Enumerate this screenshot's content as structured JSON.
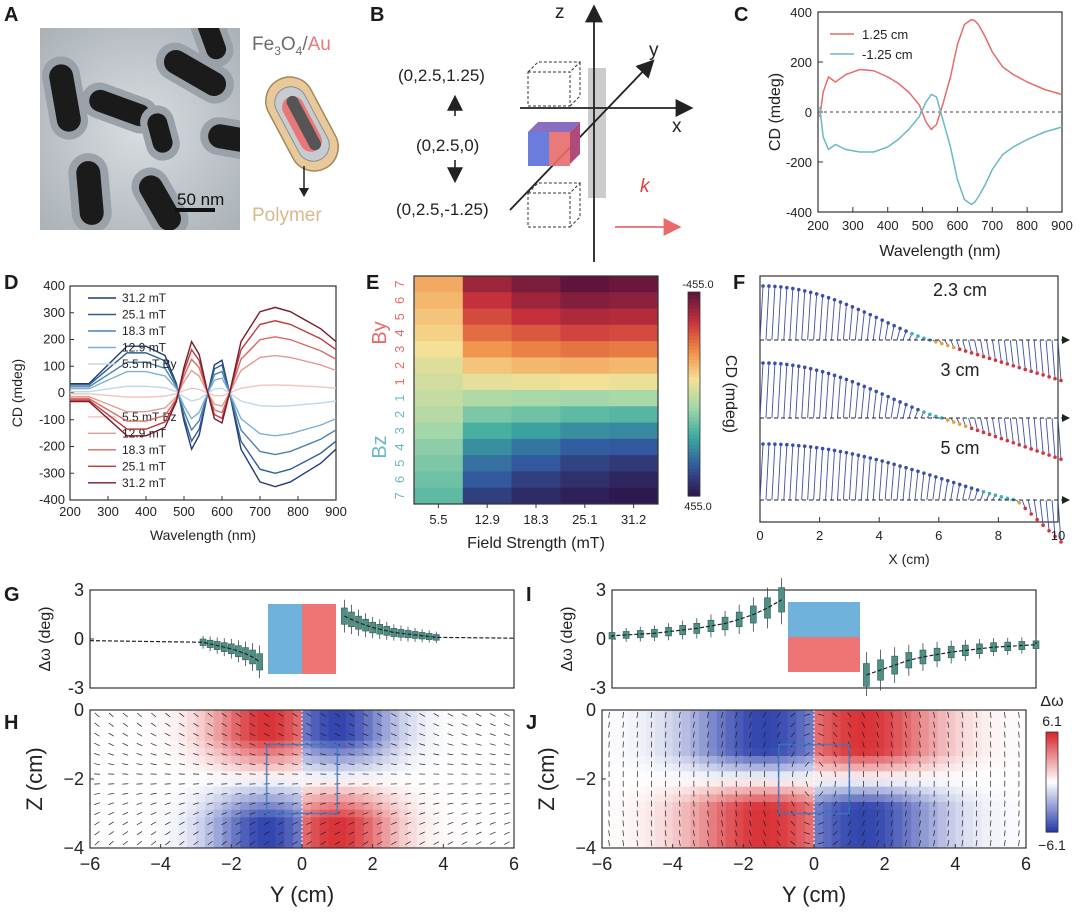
{
  "panels": {
    "A": "A",
    "B": "B",
    "C": "C",
    "D": "D",
    "E": "E",
    "F": "F",
    "G": "G",
    "H": "H",
    "I": "I",
    "J": "J"
  },
  "panel_a": {
    "scalebar": "50 nm",
    "formula_fe": "Fe",
    "formula_sub3": "3",
    "formula_o": "O",
    "formula_sub4": "4",
    "formula_slash": "/",
    "formula_au": "Au",
    "polymer": "Polymer",
    "colors": {
      "au": "#e47a7a",
      "polymer": "#d9b98a",
      "fe3o4": "#666666"
    }
  },
  "panel_b": {
    "axis_z": "z",
    "axis_y": "y",
    "axis_x": "x",
    "pos_top": "(0,2.5,1.25)",
    "pos_mid": "(0,2.5,0)",
    "pos_bot": "(0,2.5,-1.25)",
    "k": "k",
    "colors": {
      "k": "#e23c3c",
      "blue": "#5a6fd8",
      "red": "#e86a6a"
    }
  },
  "chart_data": [
    {
      "panel": "C",
      "type": "line",
      "xlabel": "Wavelength (nm)",
      "ylabel": "CD (mdeg)",
      "xlim": [
        200,
        900
      ],
      "ylim": [
        -400,
        400
      ],
      "xticks": [
        200,
        300,
        400,
        500,
        600,
        700,
        800,
        900
      ],
      "yticks": [
        -400,
        -200,
        0,
        200,
        400
      ],
      "series": [
        {
          "name": "1.25 cm",
          "color": "#e86a6a",
          "x": [
            205,
            215,
            230,
            250,
            280,
            320,
            360,
            400,
            430,
            460,
            490,
            510,
            525,
            540,
            560,
            580,
            600,
            620,
            640,
            650,
            660,
            680,
            700,
            730,
            760,
            800,
            850,
            900
          ],
          "y": [
            -20,
            80,
            140,
            120,
            150,
            170,
            165,
            140,
            115,
            80,
            30,
            -40,
            -70,
            -50,
            40,
            140,
            270,
            350,
            370,
            365,
            350,
            300,
            240,
            180,
            150,
            120,
            90,
            70
          ]
        },
        {
          "name": "-1.25 cm",
          "color": "#6ab8c8",
          "x": [
            205,
            215,
            230,
            250,
            280,
            320,
            360,
            400,
            430,
            460,
            490,
            510,
            525,
            540,
            560,
            580,
            600,
            620,
            640,
            650,
            660,
            680,
            700,
            730,
            760,
            800,
            850,
            900
          ],
          "y": [
            20,
            -100,
            -150,
            -130,
            -150,
            -160,
            -160,
            -140,
            -110,
            -70,
            -20,
            40,
            70,
            60,
            -40,
            -140,
            -270,
            -350,
            -370,
            -360,
            -340,
            -290,
            -230,
            -170,
            -140,
            -110,
            -80,
            -60
          ]
        }
      ]
    },
    {
      "panel": "D",
      "type": "line",
      "xlabel": "Wavelength (nm)",
      "ylabel": "CD (mdeg)",
      "xlim": [
        200,
        900
      ],
      "ylim": [
        -400,
        400
      ],
      "xticks": [
        200,
        300,
        400,
        500,
        600,
        700,
        800,
        900
      ],
      "yticks": [
        -400,
        -300,
        -200,
        -100,
        0,
        100,
        200,
        300,
        400
      ],
      "x": [
        200,
        250,
        300,
        350,
        400,
        450,
        480,
        500,
        520,
        540,
        560,
        580,
        600,
        620,
        650,
        700,
        740,
        780,
        820,
        860,
        900
      ],
      "shape": [
        0.1,
        0.1,
        0.3,
        0.5,
        0.5,
        0.4,
        0.1,
        -0.3,
        -0.6,
        -0.45,
        -0.05,
        0.3,
        0.35,
        0.0,
        -0.6,
        -0.95,
        -1.0,
        -0.95,
        -0.85,
        -0.75,
        -0.6
      ],
      "series": [
        {
          "name": "31.2 mT",
          "group": "By",
          "amp": 350,
          "color": "#1f3a7a"
        },
        {
          "name": "25.1 mT",
          "group": "By",
          "amp": 300,
          "color": "#2f5d94"
        },
        {
          "name": "18.3 mT",
          "group": "By",
          "amp": 230,
          "color": "#4b82b2"
        },
        {
          "name": "12.9 mT",
          "group": "By",
          "amp": 160,
          "color": "#7fb0d2"
        },
        {
          "name": "5.5 mT By",
          "group": "By",
          "amp": 50,
          "color": "#bfd8e8"
        },
        {
          "name": "5.5 mT Bz",
          "group": "Bz",
          "amp": -30,
          "color": "#f2c4c0"
        },
        {
          "name": "12.9 mT",
          "group": "Bz",
          "amp": -140,
          "color": "#e59a93"
        },
        {
          "name": "18.3 mT",
          "group": "Bz",
          "amp": -210,
          "color": "#d96a64"
        },
        {
          "name": "25.1 mT",
          "group": "Bz",
          "amp": -270,
          "color": "#c03a3a"
        },
        {
          "name": "31.2 mT",
          "group": "Bz",
          "amp": -320,
          "color": "#7a1a2a"
        }
      ]
    },
    {
      "panel": "E",
      "type": "heatmap",
      "xlabel": "Field Strength (mT)",
      "colorbar_label": "CD (mdeg)",
      "colorbar_top": "-455.0",
      "colorbar_bottom": "455.0",
      "x_categories": [
        "5.5",
        "12.9",
        "18.3",
        "25.1",
        "31.2"
      ],
      "by_label": "By",
      "bz_label": "Bz",
      "y_categories": [
        "7",
        "6",
        "5",
        "4",
        "3",
        "2",
        "1",
        "1",
        "2",
        "3",
        "4",
        "5",
        "6",
        "7"
      ],
      "values": [
        [
          -150,
          -380,
          -420,
          -455,
          -440
        ],
        [
          -130,
          -330,
          -380,
          -410,
          -400
        ],
        [
          -110,
          -290,
          -330,
          -360,
          -350
        ],
        [
          -90,
          -240,
          -270,
          -300,
          -290
        ],
        [
          -60,
          -180,
          -210,
          -230,
          -220
        ],
        [
          -30,
          -110,
          -130,
          -140,
          -130
        ],
        [
          -10,
          -40,
          -50,
          -60,
          -50
        ],
        [
          10,
          40,
          50,
          60,
          50
        ],
        [
          30,
          110,
          130,
          150,
          160
        ],
        [
          60,
          180,
          210,
          240,
          250
        ],
        [
          90,
          240,
          280,
          320,
          330
        ],
        [
          110,
          290,
          330,
          370,
          390
        ],
        [
          130,
          330,
          380,
          410,
          430
        ],
        [
          150,
          380,
          420,
          440,
          455
        ]
      ]
    },
    {
      "panel": "F",
      "type": "line",
      "xlabel": "X (cm)",
      "xlim": [
        0,
        10
      ],
      "xticks": [
        0,
        2,
        4,
        6,
        8,
        10
      ],
      "series": [
        {
          "name": "2.3 cm",
          "zero_cross": 5.6
        },
        {
          "name": "3 cm",
          "zero_cross": 6.0
        },
        {
          "name": "5 cm",
          "zero_cross": 8.5
        }
      ]
    },
    {
      "panel": "G",
      "type": "scatter",
      "ylabel": "Δω (deg)",
      "ylim": [
        -3,
        3
      ],
      "yticks": [
        -3,
        0,
        3
      ],
      "xlim": [
        -6,
        6
      ],
      "left_x": [
        -2.8,
        -2.6,
        -2.4,
        -2.2,
        -2.0,
        -1.8,
        -1.6,
        -1.4,
        -1.2
      ],
      "left_y": [
        -0.2,
        -0.3,
        -0.4,
        -0.5,
        -0.6,
        -0.75,
        -0.9,
        -1.1,
        -1.4
      ],
      "right_x": [
        1.2,
        1.4,
        1.6,
        1.8,
        2.0,
        2.2,
        2.4,
        2.6,
        2.8,
        3.0,
        3.2,
        3.4,
        3.6,
        3.8
      ],
      "right_y": [
        1.4,
        1.2,
        1.0,
        0.85,
        0.7,
        0.6,
        0.5,
        0.4,
        0.35,
        0.3,
        0.25,
        0.2,
        0.15,
        0.1
      ]
    },
    {
      "panel": "I",
      "type": "scatter",
      "ylabel": "Δω (deg)",
      "ylim": [
        -3,
        3
      ],
      "yticks": [
        -3,
        0,
        3
      ],
      "xlim": [
        -6,
        6
      ],
      "left_x": [
        -6,
        -5.6,
        -5.2,
        -4.8,
        -4.4,
        -4.0,
        -3.6,
        -3.2,
        -2.8,
        -2.4,
        -2.0,
        -1.6,
        -1.2
      ],
      "left_y": [
        0.2,
        0.25,
        0.3,
        0.35,
        0.45,
        0.55,
        0.65,
        0.8,
        0.95,
        1.2,
        1.5,
        1.9,
        2.4
      ],
      "right_x": [
        1.2,
        1.6,
        2.0,
        2.4,
        2.8,
        3.2,
        3.6,
        4.0,
        4.4,
        4.8,
        5.2,
        5.6,
        6.0
      ],
      "right_y": [
        -2.2,
        -1.9,
        -1.6,
        -1.3,
        -1.1,
        -0.95,
        -0.8,
        -0.7,
        -0.6,
        -0.5,
        -0.45,
        -0.4,
        -0.35
      ]
    },
    {
      "panel": "H",
      "type": "heatmap",
      "xlabel": "Y (cm)",
      "ylabel": "Z (cm)",
      "xlim": [
        -6,
        6
      ],
      "ylim": [
        -4,
        0
      ],
      "xticks": [
        -6,
        -4,
        -2,
        0,
        2,
        4,
        6
      ],
      "yticks": [
        0,
        -2,
        -4
      ]
    },
    {
      "panel": "J",
      "type": "heatmap",
      "xlabel": "Y (cm)",
      "ylabel": "Z (cm)",
      "xlim": [
        -6,
        6
      ],
      "ylim": [
        -4,
        0
      ],
      "xticks": [
        -6,
        -4,
        -2,
        0,
        2,
        4,
        6
      ],
      "yticks": [
        0,
        -2,
        -4
      ],
      "colorbar_label": "Δω",
      "colorbar_top": "6.1",
      "colorbar_bottom": "−6.1"
    }
  ]
}
